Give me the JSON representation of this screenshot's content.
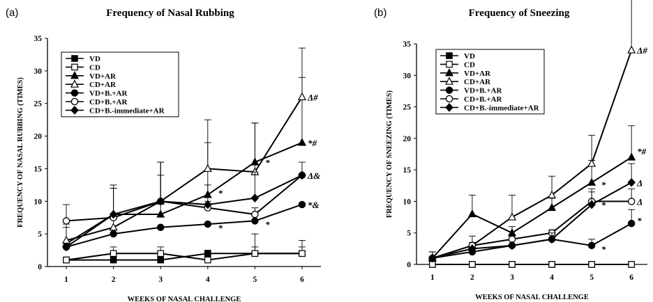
{
  "chart_data": [
    {
      "type": "line",
      "panel_label": "(a)",
      "title": "Frequency of Nasal Rubbing",
      "xlabel": "WEEKS OF NASAL CHALLENGE",
      "ylabel": "FREQUENCY  OF NASAL RUBBING (TIMES)",
      "x": [
        1,
        2,
        3,
        4,
        5,
        6
      ],
      "xlim": [
        0.6,
        6.4
      ],
      "ylim": [
        0,
        35
      ],
      "yticks": [
        0,
        5,
        10,
        15,
        20,
        25,
        30,
        35
      ],
      "legend_position": "top-left",
      "grid": false,
      "series": [
        {
          "name": "VD",
          "marker": "square-filled",
          "values": [
            1,
            1,
            1,
            2,
            2,
            2
          ],
          "err": [
            0,
            0.5,
            0.5,
            0.5,
            3,
            2
          ]
        },
        {
          "name": "CD",
          "marker": "square-open",
          "values": [
            1,
            2,
            2,
            1,
            2,
            2
          ],
          "err": [
            0,
            1,
            1,
            1,
            1,
            1
          ]
        },
        {
          "name": "VD+AR",
          "marker": "triangle-filled",
          "values": [
            3.5,
            8,
            8,
            11,
            16,
            19
          ],
          "err": [
            3,
            4,
            6,
            8,
            6,
            10
          ]
        },
        {
          "name": "CD+AR",
          "marker": "triangle-open",
          "values": [
            4,
            6,
            10,
            15,
            14.5,
            26
          ],
          "err": [
            2,
            2,
            6,
            7.5,
            7.5,
            7.5
          ]
        },
        {
          "name": "VD+B.+AR",
          "marker": "circle-filled",
          "values": [
            3,
            5,
            6,
            6.5,
            7,
            9.5
          ],
          "err": [
            0,
            0,
            0,
            0,
            0,
            0
          ]
        },
        {
          "name": "CD+B.+AR",
          "marker": "circle-open",
          "values": [
            7,
            7.5,
            10,
            9,
            8,
            14
          ],
          "err": [
            2.5,
            5,
            6,
            1,
            1,
            2
          ]
        },
        {
          "name": "CD+B.-immediate+AR",
          "marker": "diamond-filled",
          "values": [
            3,
            8,
            10,
            9.5,
            10.5,
            14
          ],
          "err": [
            0,
            4,
            6,
            3,
            4,
            0
          ]
        }
      ],
      "annotations": [
        {
          "x": 6,
          "y": 26,
          "text": "Δ#"
        },
        {
          "x": 6,
          "y": 19,
          "text": "*#"
        },
        {
          "x": 6,
          "y": 14,
          "text": "Δ&"
        },
        {
          "x": 6,
          "y": 9.5,
          "text": "*&"
        },
        {
          "x": 4.1,
          "y": 11.3,
          "text": "*"
        },
        {
          "x": 4.1,
          "y": 6,
          "text": "*"
        },
        {
          "x": 5.1,
          "y": 16,
          "text": "*"
        },
        {
          "x": 5.1,
          "y": 6.5,
          "text": "*"
        }
      ]
    },
    {
      "type": "line",
      "panel_label": "(b)",
      "title": "Frequency of Sneezing",
      "xlabel": "WEEKS OF NASAL CHALLENGE",
      "ylabel": "FREQUENCY OF SNEEZING (TIMES)",
      "x": [
        1,
        2,
        3,
        4,
        5,
        6
      ],
      "xlim": [
        0.6,
        6.4
      ],
      "ylim": [
        0,
        35
      ],
      "yticks": [
        0,
        5,
        10,
        15,
        20,
        25,
        30,
        35
      ],
      "legend_position": "top-left",
      "grid": false,
      "series": [
        {
          "name": "VD",
          "marker": "square-filled",
          "values": [
            0,
            0,
            0,
            0,
            0,
            0
          ],
          "err": [
            0,
            0,
            0,
            0,
            0,
            0
          ]
        },
        {
          "name": "CD",
          "marker": "square-open",
          "values": [
            0,
            0,
            0,
            0,
            0,
            0
          ],
          "err": [
            0,
            0,
            0,
            0,
            0,
            0
          ]
        },
        {
          "name": "VD+AR",
          "marker": "triangle-filled",
          "values": [
            1,
            8,
            5,
            9,
            13,
            17
          ],
          "err": [
            1,
            3,
            1,
            1.5,
            3.5,
            5
          ]
        },
        {
          "name": "CD+AR",
          "marker": "triangle-open",
          "values": [
            1,
            3,
            7.5,
            11,
            16,
            34
          ],
          "err": [
            1,
            1.5,
            3.5,
            3,
            4.5,
            8
          ]
        },
        {
          "name": "VD+B.+AR",
          "marker": "circle-filled",
          "values": [
            1,
            2,
            3,
            4,
            3,
            6.5
          ],
          "err": [
            0,
            0,
            0,
            0,
            1,
            2.2
          ]
        },
        {
          "name": "CD+B.+AR",
          "marker": "circle-open",
          "values": [
            1,
            3,
            4,
            5,
            10,
            10
          ],
          "err": [
            0,
            0.5,
            0.5,
            0.5,
            2,
            2
          ]
        },
        {
          "name": "CD+B.-immediate+AR",
          "marker": "diamond-filled",
          "values": [
            1,
            2.5,
            3,
            4,
            9.5,
            13
          ],
          "err": [
            0,
            0,
            0,
            1,
            2,
            3
          ]
        }
      ],
      "annotations": [
        {
          "x": 6,
          "y": 34,
          "text": "Δ#"
        },
        {
          "x": 6,
          "y": 18,
          "text": "*#"
        },
        {
          "x": 6,
          "y": 13,
          "text": "Δ"
        },
        {
          "x": 6,
          "y": 10,
          "text": "Δ"
        },
        {
          "x": 6,
          "y": 7,
          "text": "*"
        },
        {
          "x": 5.1,
          "y": 12.7,
          "text": "*"
        },
        {
          "x": 5.1,
          "y": 9.5,
          "text": "*"
        },
        {
          "x": 5.1,
          "y": 2.5,
          "text": "*"
        }
      ]
    }
  ]
}
